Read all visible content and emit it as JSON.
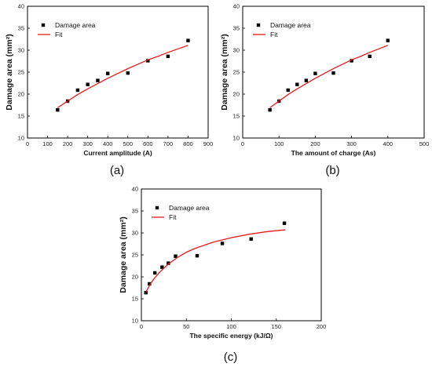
{
  "chart_data": [
    {
      "type": "scatter",
      "panel_label": "(a)",
      "xlabel": "Current amplitude (A)",
      "ylabel": "Damage area (mm²)",
      "xlim": [
        0,
        900
      ],
      "ylim": [
        10,
        40
      ],
      "xticks": [
        0,
        100,
        200,
        300,
        400,
        500,
        600,
        700,
        800,
        900
      ],
      "yticks": [
        10,
        15,
        20,
        25,
        30,
        35,
        40
      ],
      "grid": false,
      "legend_position": "top-left",
      "series": [
        {
          "name": "Damage area",
          "kind": "points",
          "color": "#000000",
          "x": [
            150,
            200,
            250,
            300,
            350,
            400,
            500,
            600,
            700,
            800
          ],
          "y": [
            16.4,
            18.4,
            20.9,
            22.2,
            23.1,
            24.7,
            24.8,
            27.6,
            28.6,
            32.2
          ]
        },
        {
          "name": "Fit",
          "kind": "line",
          "color": "#e8191c",
          "x": [
            150,
            200,
            250,
            300,
            350,
            400,
            450,
            500,
            550,
            600,
            650,
            700,
            750,
            800
          ],
          "y": [
            16.9,
            18.4,
            19.9,
            21.2,
            22.4,
            23.6,
            24.7,
            25.8,
            26.8,
            27.8,
            28.6,
            29.5,
            30.3,
            31.1
          ]
        }
      ]
    },
    {
      "type": "scatter",
      "panel_label": "(b)",
      "xlabel": "The amount of charge (As)",
      "ylabel": "Damage area (mm²)",
      "xlim": [
        0,
        500
      ],
      "ylim": [
        10,
        40
      ],
      "xticks": [
        0,
        100,
        200,
        300,
        400,
        500
      ],
      "yticks": [
        10,
        15,
        20,
        25,
        30,
        35,
        40
      ],
      "grid": false,
      "legend_position": "top-left",
      "series": [
        {
          "name": "Damage area",
          "kind": "points",
          "color": "#000000",
          "x": [
            75,
            100,
            125,
            150,
            175,
            200,
            250,
            300,
            350,
            400
          ],
          "y": [
            16.4,
            18.4,
            20.9,
            22.2,
            23.1,
            24.7,
            24.8,
            27.6,
            28.6,
            32.2
          ]
        },
        {
          "name": "Fit",
          "kind": "line",
          "color": "#e8191c",
          "x": [
            75,
            100,
            125,
            150,
            175,
            200,
            225,
            250,
            275,
            300,
            325,
            350,
            375,
            400
          ],
          "y": [
            16.9,
            18.4,
            19.9,
            21.2,
            22.4,
            23.6,
            24.7,
            25.8,
            26.8,
            27.8,
            28.6,
            29.5,
            30.3,
            31.1
          ]
        }
      ]
    },
    {
      "type": "scatter",
      "panel_label": "(c)",
      "xlabel": "The specific energy (kJ/Ω)",
      "ylabel": "Damage area (mm²)",
      "xlim": [
        0,
        200
      ],
      "ylim": [
        10,
        40
      ],
      "xticks": [
        0,
        50,
        100,
        150,
        200
      ],
      "yticks": [
        10,
        15,
        20,
        25,
        30,
        35,
        40
      ],
      "grid": false,
      "legend_position": "top-left",
      "series": [
        {
          "name": "Damage area",
          "kind": "points",
          "color": "#000000",
          "x": [
            5,
            9,
            15,
            23,
            30,
            38,
            62,
            90,
            122,
            159
          ],
          "y": [
            16.4,
            18.4,
            20.9,
            22.2,
            23.1,
            24.7,
            24.8,
            27.6,
            28.6,
            32.2
          ]
        },
        {
          "name": "Fit",
          "kind": "line",
          "color": "#e8191c",
          "x": [
            5,
            10,
            15,
            20,
            30,
            40,
            50,
            60,
            80,
            100,
            120,
            140,
            160
          ],
          "y": [
            16.5,
            18.4,
            19.8,
            21.0,
            22.9,
            24.4,
            25.6,
            26.5,
            27.9,
            28.9,
            29.7,
            30.3,
            30.7
          ]
        }
      ]
    }
  ]
}
